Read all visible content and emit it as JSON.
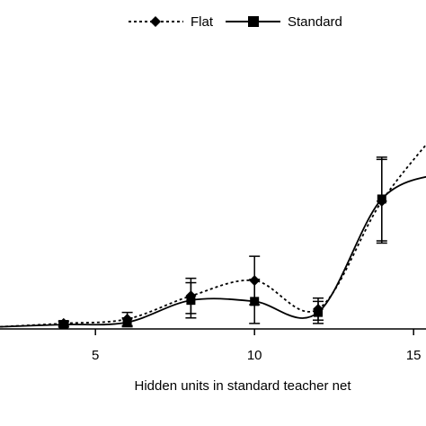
{
  "chart_data": {
    "type": "line",
    "title": "",
    "xlabel": "Hidden units in standard teacher net",
    "ylabel": "",
    "xlim": [
      2,
      16
    ],
    "ylim": [
      0,
      10
    ],
    "xticks": [
      5,
      10,
      15
    ],
    "grid": false,
    "legend": {
      "placement": "top-center"
    },
    "series": [
      {
        "name": "Flat",
        "line_style": "dotted",
        "marker": "diamond",
        "x": [
          2,
          4,
          6,
          8,
          10,
          12,
          14,
          16
        ],
        "y": [
          0.1,
          0.25,
          0.45,
          1.5,
          2.2,
          0.9,
          5.8,
          9.4
        ],
        "err": [
          0,
          0.12,
          0.3,
          0.8,
          1.1,
          0.5,
          1.9,
          0
        ],
        "marker_at": [
          4,
          6,
          8,
          10,
          12,
          14
        ]
      },
      {
        "name": "Standard",
        "line_style": "solid",
        "marker": "square",
        "x": [
          2,
          4,
          6,
          8,
          10,
          12,
          14,
          16
        ],
        "y": [
          0.1,
          0.2,
          0.3,
          1.3,
          1.25,
          0.75,
          5.9,
          7.1
        ],
        "err": [
          0,
          0.12,
          0.2,
          0.8,
          1.0,
          0.5,
          1.9,
          0
        ],
        "marker_at": [
          4,
          6,
          8,
          10,
          12,
          14
        ]
      }
    ]
  }
}
